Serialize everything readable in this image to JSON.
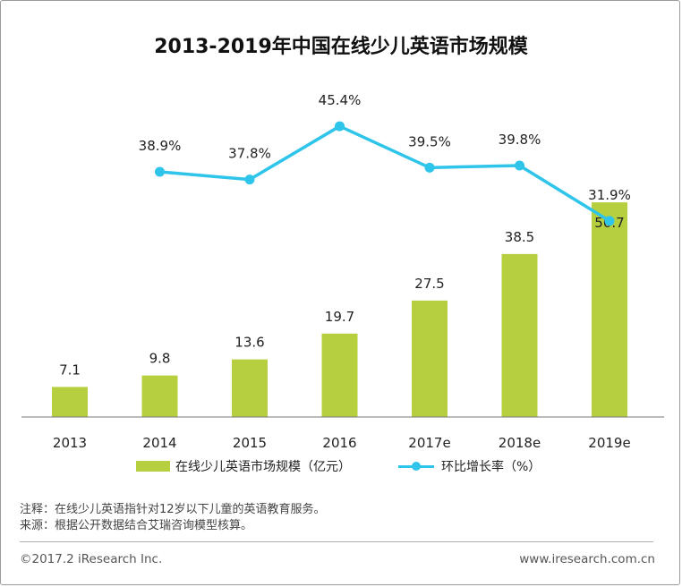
{
  "chart_data": {
    "type": "bar",
    "title": "2013-2019年中国在线少儿英语市场规模",
    "categories": [
      "2013",
      "2014",
      "2015",
      "2016",
      "2017e",
      "2018e",
      "2019e"
    ],
    "series": [
      {
        "name": "在线少儿英语市场规模（亿元）",
        "type": "bar",
        "values": [
          7.1,
          9.8,
          13.6,
          19.7,
          27.5,
          38.5,
          50.7
        ],
        "labels": [
          "7.1",
          "9.8",
          "13.6",
          "19.7",
          "27.5",
          "38.5",
          "50.7"
        ],
        "color": "#b5cf3f"
      },
      {
        "name": "环比增长率（%）",
        "type": "line",
        "values": [
          null,
          38.9,
          37.8,
          45.4,
          39.5,
          39.8,
          31.9
        ],
        "labels": [
          "",
          "38.9%",
          "37.8%",
          "45.4%",
          "39.5%",
          "39.8%",
          "31.9%"
        ],
        "color": "#2fc4ea"
      }
    ],
    "bar_axis_max": 52,
    "line_axis_range": [
      0,
      50
    ],
    "grid": false,
    "legend_position": "bottom"
  },
  "notes": {
    "note": "注释：在线少儿英语指针对12岁以下儿童的英语教育服务。",
    "source": "来源：根据公开数据结合艾瑞咨询模型核算。"
  },
  "footer": {
    "copyright": "©2017.2 iResearch Inc.",
    "website": "www.iresearch.com.cn"
  }
}
